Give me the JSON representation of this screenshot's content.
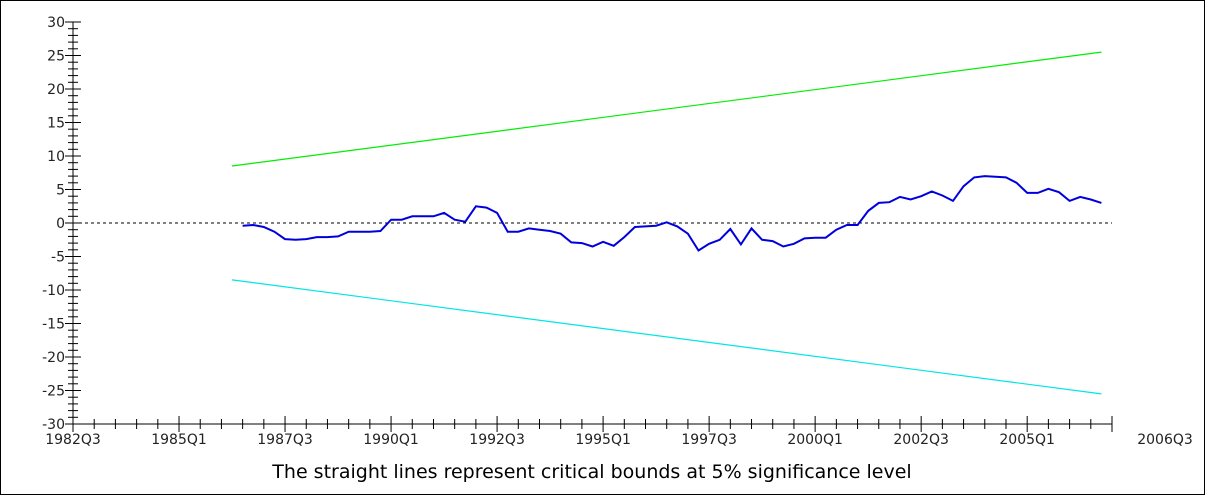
{
  "chart_data": {
    "type": "line",
    "caption": "The straight lines represent critical bounds at 5% significance level",
    "xlabel": "",
    "ylabel": "",
    "ylim": [
      -30,
      30
    ],
    "y_ticks": [
      30,
      25,
      20,
      15,
      10,
      5,
      0,
      -5,
      -10,
      -15,
      -20,
      -25,
      -30
    ],
    "y_tick_labels": [
      "30",
      "25",
      "20",
      "15",
      "10",
      "5",
      "0",
      "-5",
      "-10",
      "-15",
      "-20",
      "-25",
      "-30"
    ],
    "xlim": [
      1982.5,
      2007.0
    ],
    "x_tick_labels": [
      {
        "label": "1982Q3",
        "x": 1982.5
      },
      {
        "label": "1985Q1",
        "x": 1985.0
      },
      {
        "label": "1987Q3",
        "x": 1987.5
      },
      {
        "label": "1990Q1",
        "x": 1990.0
      },
      {
        "label": "1992Q3",
        "x": 1992.5
      },
      {
        "label": "1995Q1",
        "x": 1995.0
      },
      {
        "label": "1997Q3",
        "x": 1997.5
      },
      {
        "label": "2000Q1",
        "x": 2000.0
      },
      {
        "label": "2002Q3",
        "x": 2002.5
      },
      {
        "label": "2005Q1",
        "x": 2005.0
      },
      {
        "label": "2006Q3",
        "x": 2007.0
      }
    ],
    "grid": false,
    "zero_line": {
      "y": 0,
      "style": "dashed",
      "color": "#000000"
    },
    "series": [
      {
        "color": "#00ee00",
        "points": [
          [
            1986.25,
            8.5
          ],
          [
            1982.5,
            0
          ],
          [
            2006.75,
            25.5
          ]
        ]
      },
      {
        "color": "#00e5e5",
        "points": [
          [
            1986.25,
            -8.5
          ],
          [
            2006.75,
            -25.5
          ]
        ]
      },
      {
        "color": "#0000dd",
        "points": [
          [
            1986.5,
            -0.4
          ],
          [
            1986.75,
            -0.3
          ],
          [
            1987.0,
            -0.6
          ],
          [
            1987.25,
            -1.3
          ],
          [
            1987.5,
            -2.4
          ],
          [
            1987.75,
            -2.5
          ],
          [
            1988.0,
            -2.4
          ],
          [
            1988.25,
            -2.1
          ],
          [
            1988.5,
            -2.1
          ],
          [
            1988.75,
            -2.0
          ],
          [
            1989.0,
            -1.3
          ],
          [
            1989.25,
            -1.3
          ],
          [
            1989.5,
            -1.3
          ],
          [
            1989.75,
            -1.2
          ],
          [
            1990.0,
            0.5
          ],
          [
            1990.25,
            0.5
          ],
          [
            1990.5,
            1.0
          ],
          [
            1990.75,
            1.0
          ],
          [
            1991.0,
            1.0
          ],
          [
            1991.25,
            1.5
          ],
          [
            1991.5,
            0.5
          ],
          [
            1991.75,
            0.2
          ],
          [
            1992.0,
            2.5
          ],
          [
            1992.25,
            2.3
          ],
          [
            1992.5,
            1.5
          ],
          [
            1992.75,
            -1.3
          ],
          [
            1993.0,
            -1.3
          ],
          [
            1993.25,
            -0.8
          ],
          [
            1993.5,
            -1.0
          ],
          [
            1993.75,
            -1.2
          ],
          [
            1994.0,
            -1.6
          ],
          [
            1994.25,
            -2.9
          ],
          [
            1994.5,
            -3.0
          ],
          [
            1994.75,
            -3.5
          ],
          [
            1995.0,
            -2.8
          ],
          [
            1995.25,
            -3.4
          ],
          [
            1995.5,
            -2.1
          ],
          [
            1995.75,
            -0.6
          ],
          [
            1996.0,
            -0.5
          ],
          [
            1996.25,
            -0.4
          ],
          [
            1996.5,
            0.1
          ],
          [
            1996.75,
            -0.5
          ],
          [
            1997.0,
            -1.6
          ],
          [
            1997.25,
            -4.1
          ],
          [
            1997.5,
            -3.1
          ],
          [
            1997.75,
            -2.5
          ],
          [
            1998.0,
            -0.9
          ],
          [
            1998.25,
            -3.2
          ],
          [
            1998.5,
            -0.8
          ],
          [
            1998.75,
            -2.5
          ],
          [
            1999.0,
            -2.7
          ],
          [
            1999.25,
            -3.5
          ],
          [
            1999.5,
            -3.1
          ],
          [
            1999.75,
            -2.3
          ],
          [
            2000.0,
            -2.2
          ],
          [
            2000.25,
            -2.2
          ],
          [
            2000.5,
            -1.0
          ],
          [
            2000.75,
            -0.3
          ],
          [
            2001.0,
            -0.3
          ],
          [
            2001.25,
            1.8
          ],
          [
            2001.5,
            3.0
          ],
          [
            2001.75,
            3.1
          ],
          [
            2002.0,
            3.9
          ],
          [
            2002.25,
            3.5
          ],
          [
            2002.5,
            4.0
          ],
          [
            2002.75,
            4.7
          ],
          [
            2003.0,
            4.1
          ],
          [
            2003.25,
            3.3
          ],
          [
            2003.5,
            5.5
          ],
          [
            2003.75,
            6.8
          ],
          [
            2004.0,
            7.0
          ],
          [
            2004.25,
            6.9
          ],
          [
            2004.5,
            6.8
          ],
          [
            2004.75,
            6.0
          ],
          [
            2005.0,
            4.5
          ],
          [
            2005.25,
            4.5
          ],
          [
            2005.5,
            5.1
          ],
          [
            2005.75,
            4.6
          ],
          [
            2006.0,
            3.3
          ],
          [
            2006.25,
            3.9
          ],
          [
            2006.5,
            3.5
          ],
          [
            2006.75,
            3.0
          ]
        ]
      }
    ]
  }
}
